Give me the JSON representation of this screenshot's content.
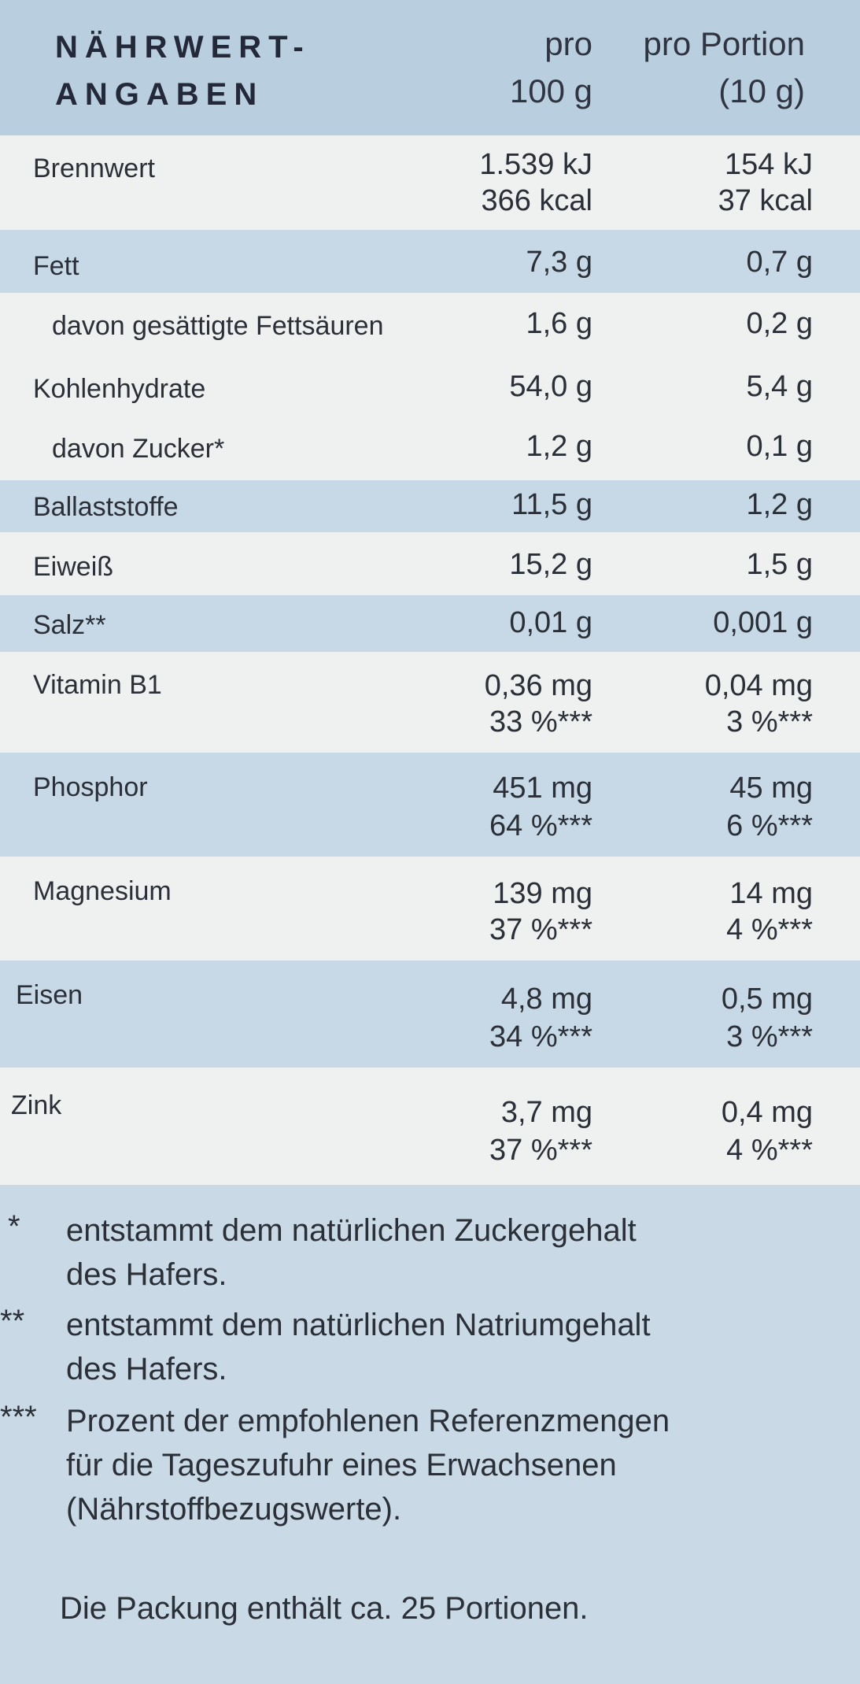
{
  "header": {
    "title_line1": "NÄHRWERT-",
    "title_line2": "ANGABEN",
    "col1_line1": "pro",
    "col1_line2": "100 g",
    "col2_line1": "pro Portion",
    "col2_line2": "(10 g)"
  },
  "rows": [
    {
      "label": "Brennwert",
      "v1a": "1.539 kJ",
      "v1b": "366 kcal",
      "v2a": "154 kJ",
      "v2b": "37 kcal"
    },
    {
      "label": "Fett",
      "v1a": "7,3 g",
      "v2a": "0,7 g"
    },
    {
      "label": "davon gesättigte Fettsäuren",
      "v1a": "1,6 g",
      "v2a": "0,2 g"
    },
    {
      "label": "Kohlenhydrate",
      "v1a": "54,0 g",
      "v2a": "5,4 g"
    },
    {
      "label": "davon Zucker*",
      "v1a": "1,2 g",
      "v2a": "0,1 g"
    },
    {
      "label": "Ballaststoffe",
      "v1a": "11,5 g",
      "v2a": "1,2 g"
    },
    {
      "label": "Eiweiß",
      "v1a": "15,2 g",
      "v2a": "1,5 g"
    },
    {
      "label": "Salz**",
      "v1a": "0,01 g",
      "v2a": "0,001 g"
    },
    {
      "label": "Vitamin B1",
      "v1a": "0,36 mg",
      "v1b": "33 %***",
      "v2a": "0,04 mg",
      "v2b": "3 %***"
    },
    {
      "label": "Phosphor",
      "v1a": "451 mg",
      "v1b": "64 %***",
      "v2a": "45 mg",
      "v2b": "6 %***"
    },
    {
      "label": "Magnesium",
      "v1a": "139 mg",
      "v1b": "37 %***",
      "v2a": "14 mg",
      "v2b": "4 %***"
    },
    {
      "label": "Eisen",
      "v1a": "4,8 mg",
      "v1b": "34 %***",
      "v2a": "0,5 mg",
      "v2b": "3 %***"
    },
    {
      "label": "Zink",
      "v1a": "3,7 mg",
      "v1b": "37 %***",
      "v2a": "0,4 mg",
      "v2b": "4 %***"
    }
  ],
  "footnotes": [
    {
      "mark": "*",
      "line1": "entstammt dem natürlichen Zuckergehalt",
      "line2": "des Hafers."
    },
    {
      "mark": "**",
      "line1": "entstammt dem natürlichen Natriumgehalt",
      "line2": "des Hafers."
    },
    {
      "mark": "***",
      "line1": "Prozent der empfohlenen Referenzmengen",
      "line2": "für die Tageszufuhr eines Erwachsenen",
      "line3": "(Nährstoffbezugswerte)."
    }
  ],
  "package_note": "Die Packung enthält ca. 25 Portionen.",
  "colors": {
    "band": "#c7d9e6",
    "plain": "#eef1ef",
    "header": "#b9cfe0",
    "text": "#2b2f38"
  }
}
